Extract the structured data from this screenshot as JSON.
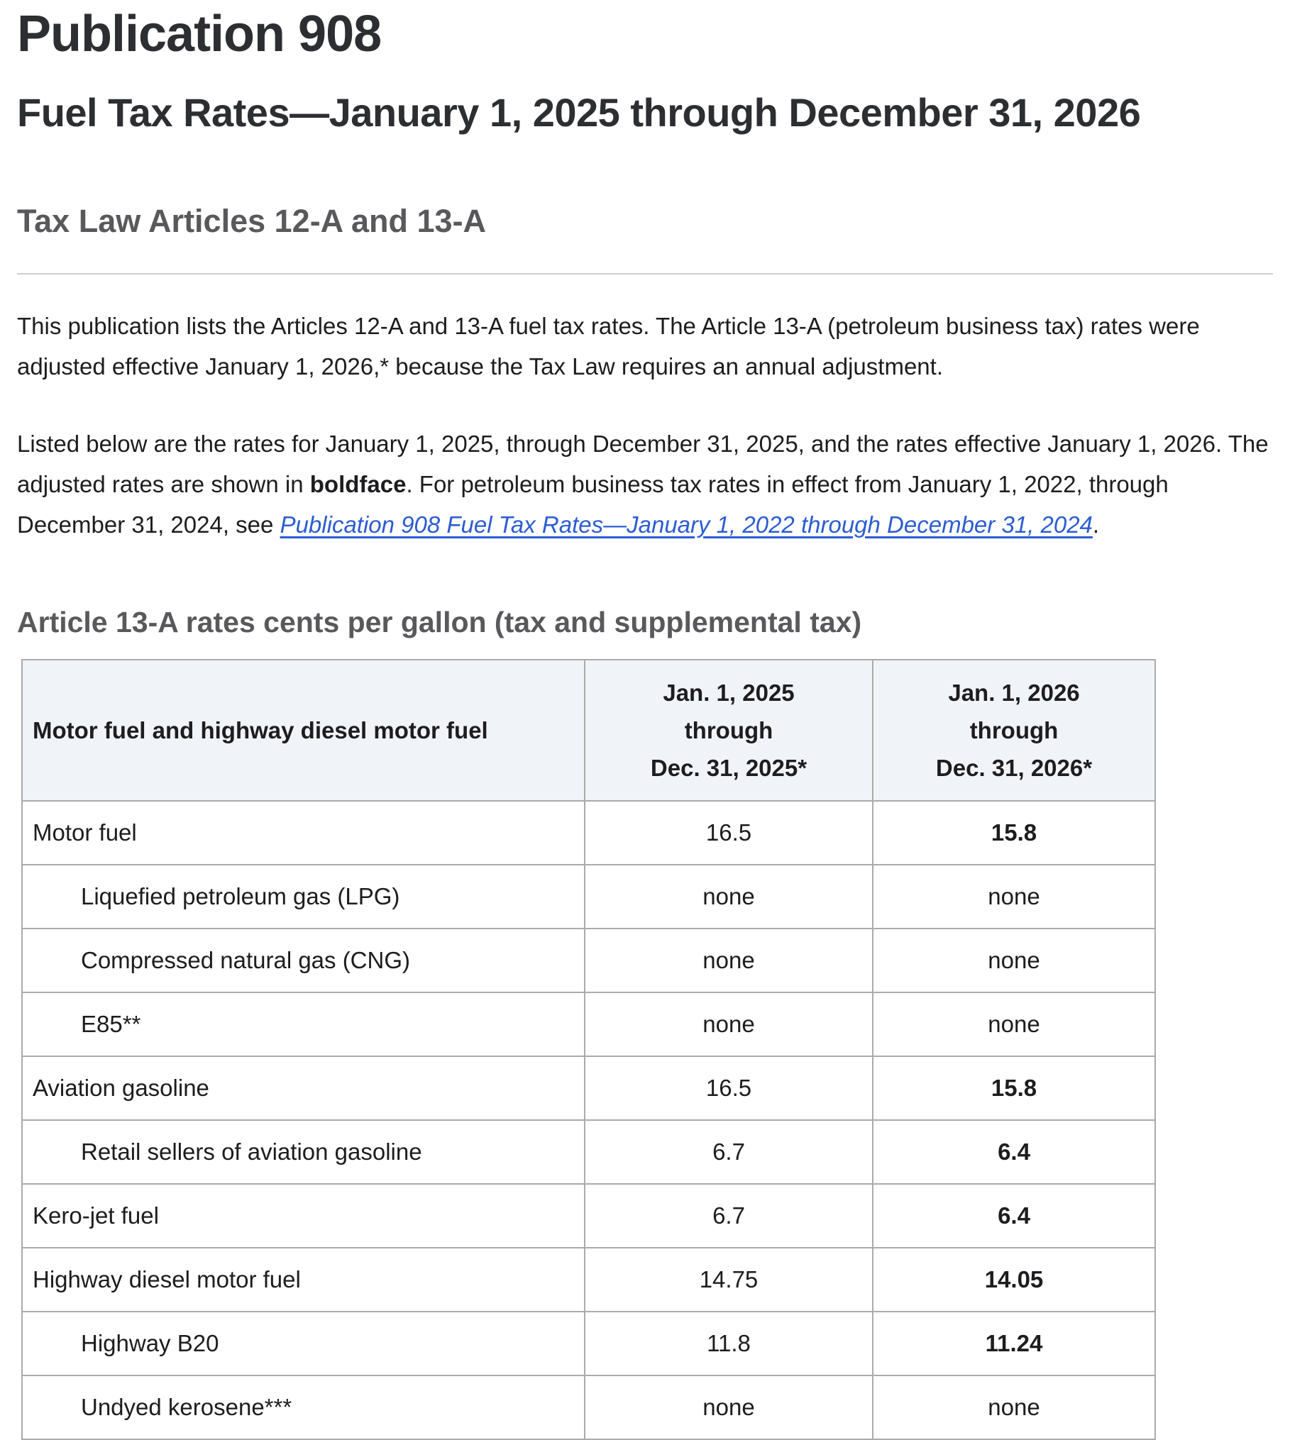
{
  "page": {
    "title": "Publication 908",
    "subtitle": "Fuel Tax Rates—January 1, 2025 through December 31, 2026",
    "tax_law_heading": "Tax Law Articles 12-A and 13-A"
  },
  "intro": {
    "paragraph1": "This publication lists the Articles 12-A and 13-A fuel tax rates. The Article 13-A (petroleum business tax) rates were adjusted effective January 1, 2026,* because the Tax Law requires an annual adjustment.",
    "paragraph2_before_bold": "Listed below are the rates for January 1, 2025, through December 31, 2025, and the rates effective January 1, 2026. The adjusted rates are shown in ",
    "paragraph2_bold": "boldface",
    "paragraph2_after_bold": ". For petroleum business tax rates in effect from January 1, 2022, through December 31, 2024, see ",
    "paragraph2_link": "Publication 908 Fuel Tax Rates—January 1, 2022 through December 31, 2024",
    "paragraph2_period": "."
  },
  "rates_table": {
    "section_heading": "Article 13-A rates cents per gallon (tax and supplemental tax)",
    "column1_header": "Motor fuel and highway diesel motor fuel",
    "column2_header_lines": [
      "Jan. 1, 2025",
      "through",
      "Dec. 31, 2025*"
    ],
    "column3_header_lines": [
      "Jan. 1, 2026",
      "through",
      "Dec. 31, 2026*"
    ],
    "rows": [
      {
        "fuel": "Motor fuel",
        "indent": false,
        "rate_2025": "16.5",
        "rate_2026": "15.8",
        "adjusted": true
      },
      {
        "fuel": "Liquefied petroleum gas (LPG)",
        "indent": true,
        "rate_2025": "none",
        "rate_2026": "none",
        "adjusted": false
      },
      {
        "fuel": "Compressed natural gas (CNG)",
        "indent": true,
        "rate_2025": "none",
        "rate_2026": "none",
        "adjusted": false
      },
      {
        "fuel": "E85**",
        "indent": true,
        "rate_2025": "none",
        "rate_2026": "none",
        "adjusted": false
      },
      {
        "fuel": "Aviation gasoline",
        "indent": false,
        "rate_2025": "16.5",
        "rate_2026": "15.8",
        "adjusted": true
      },
      {
        "fuel": "Retail sellers of aviation gasoline",
        "indent": true,
        "rate_2025": "6.7",
        "rate_2026": "6.4",
        "adjusted": true
      },
      {
        "fuel": "Kero-jet fuel",
        "indent": false,
        "rate_2025": "6.7",
        "rate_2026": "6.4",
        "adjusted": true
      },
      {
        "fuel": "Highway diesel motor fuel",
        "indent": false,
        "rate_2025": "14.75",
        "rate_2026": "14.05",
        "adjusted": true
      },
      {
        "fuel": "Highway B20",
        "indent": true,
        "rate_2025": "11.8",
        "rate_2026": "11.24",
        "adjusted": true
      },
      {
        "fuel": "Undyed kerosene***",
        "indent": true,
        "rate_2025": "none",
        "rate_2026": "none",
        "adjusted": false
      }
    ]
  },
  "colors": {
    "heading_dark": "#2d2e31",
    "heading_gray": "#59595c",
    "body_text": "#1d1d20",
    "link_blue": "#2b5cd1",
    "table_border": "#ababab",
    "table_header_bg": "#f0f4f8",
    "rule_gray": "#cdcdcd"
  }
}
